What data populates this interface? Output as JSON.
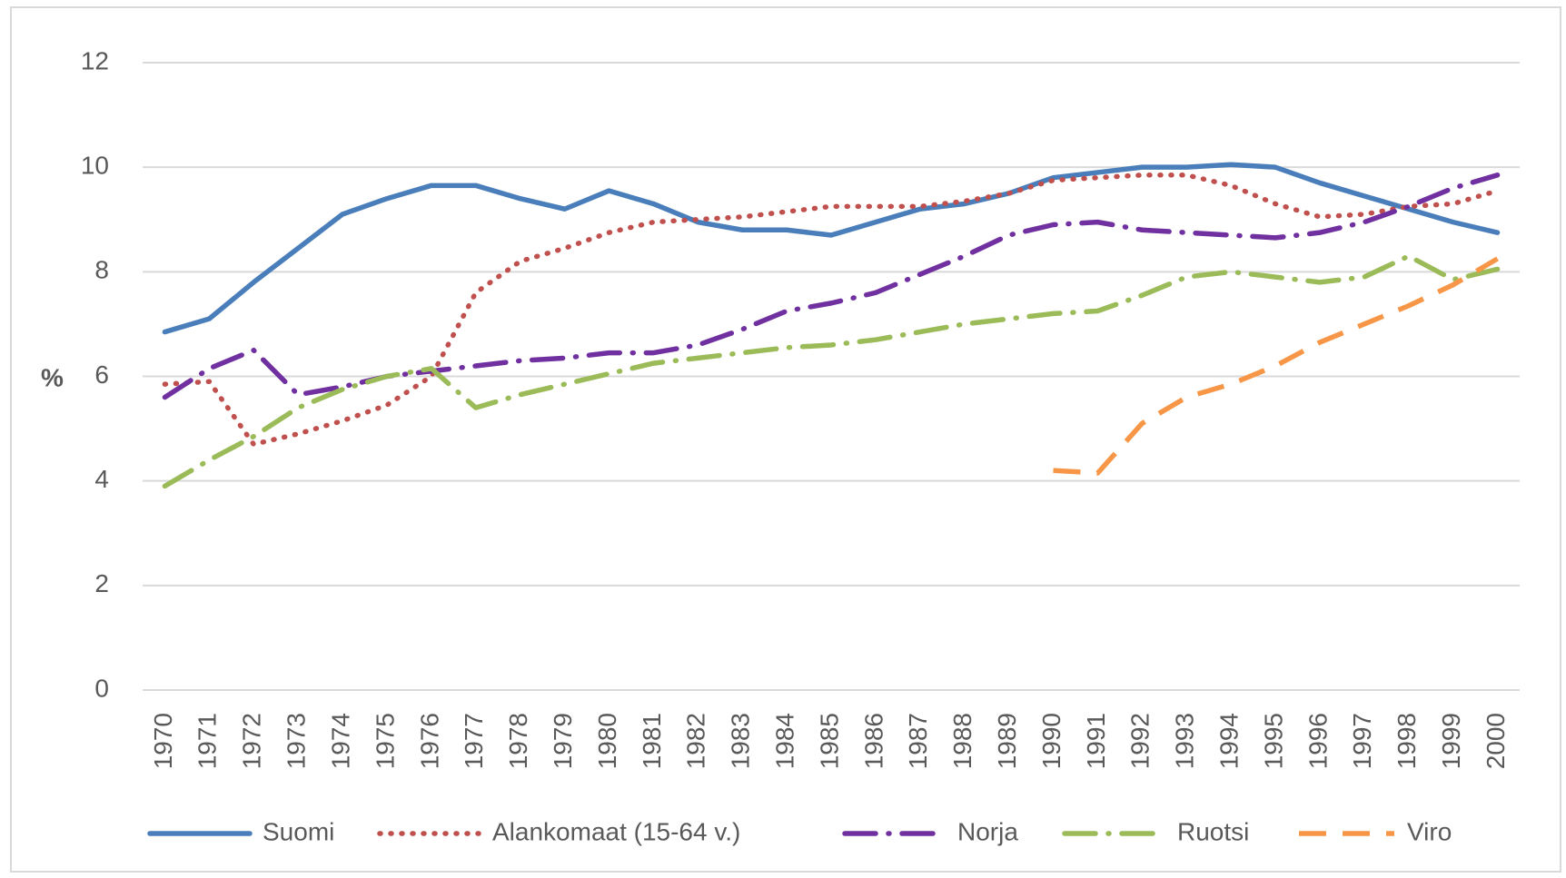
{
  "chart_data": {
    "type": "line",
    "y_label": "%",
    "categories": [
      "1970",
      "1971",
      "1972",
      "1973",
      "1974",
      "1975",
      "1976",
      "1977",
      "1978",
      "1979",
      "1980",
      "1981",
      "1982",
      "1983",
      "1984",
      "1985",
      "1986",
      "1987",
      "1988",
      "1989",
      "1990",
      "1991",
      "1992",
      "1993",
      "1994",
      "1995",
      "1996",
      "1997",
      "1998",
      "1999",
      "2000"
    ],
    "series": [
      {
        "name": "Suomi",
        "color": "#4a7ebb",
        "style": "solid",
        "values": [
          6.85,
          7.1,
          7.8,
          8.45,
          9.1,
          9.4,
          9.65,
          9.65,
          9.4,
          9.2,
          9.55,
          9.3,
          8.95,
          8.8,
          8.8,
          8.7,
          8.95,
          9.2,
          9.3,
          9.5,
          9.8,
          9.9,
          10.0,
          10.0,
          10.05,
          10.0,
          9.7,
          9.45,
          9.2,
          8.95,
          8.75
        ]
      },
      {
        "name": "Alankomaat (15-64 v.)",
        "color": "#c0504d",
        "style": "dot",
        "values": [
          5.85,
          5.9,
          4.7,
          4.9,
          5.15,
          5.45,
          6.0,
          7.6,
          8.2,
          8.45,
          8.75,
          8.95,
          9.0,
          9.05,
          9.15,
          9.25,
          9.25,
          9.25,
          9.35,
          9.5,
          9.75,
          9.8,
          9.85,
          9.85,
          9.65,
          9.3,
          9.05,
          9.1,
          9.25,
          9.3,
          9.55
        ]
      },
      {
        "name": "Norja",
        "color": "#7030a0",
        "style": "longDashDot",
        "values": [
          5.6,
          6.15,
          6.5,
          5.65,
          5.8,
          6.0,
          6.1,
          6.2,
          6.3,
          6.35,
          6.45,
          6.45,
          6.6,
          6.9,
          7.25,
          7.4,
          7.6,
          7.95,
          8.3,
          8.7,
          8.9,
          8.95,
          8.8,
          8.75,
          8.7,
          8.65,
          8.75,
          8.95,
          9.25,
          9.6,
          9.85
        ]
      },
      {
        "name": "Ruotsi",
        "color": "#9bbb59",
        "style": "longDashDot",
        "values": [
          3.9,
          4.4,
          4.85,
          5.4,
          5.75,
          6.0,
          6.15,
          5.4,
          5.65,
          5.85,
          6.05,
          6.25,
          6.35,
          6.45,
          6.55,
          6.6,
          6.7,
          6.85,
          7.0,
          7.1,
          7.2,
          7.25,
          7.55,
          7.9,
          8.0,
          7.9,
          7.8,
          7.9,
          8.3,
          7.85,
          8.05
        ]
      },
      {
        "name": "Viro",
        "color": "#f79646",
        "style": "dash",
        "values": [
          null,
          null,
          null,
          null,
          null,
          null,
          null,
          null,
          null,
          null,
          null,
          null,
          null,
          null,
          null,
          null,
          null,
          null,
          null,
          null,
          4.2,
          4.15,
          5.1,
          5.6,
          5.85,
          6.2,
          6.65,
          7.0,
          7.35,
          7.75,
          8.25
        ]
      }
    ],
    "ylim": [
      0,
      12
    ],
    "yticks": [
      0,
      2,
      4,
      6,
      8,
      10,
      12
    ],
    "grid": true,
    "legend": "bottom"
  }
}
